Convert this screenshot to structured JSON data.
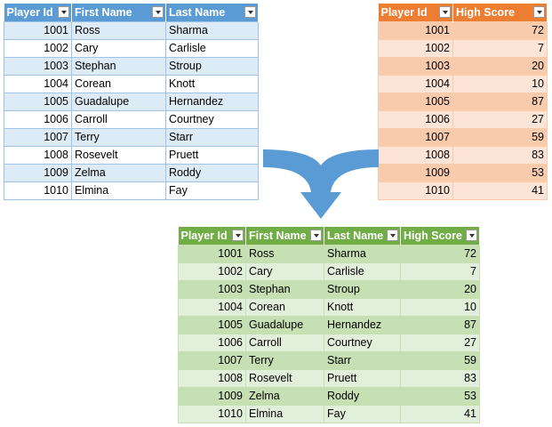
{
  "tables": {
    "players": {
      "headers": [
        "Player Id",
        "First Name",
        "Last Name"
      ],
      "rows": [
        [
          "1001",
          "Ross",
          "Sharma"
        ],
        [
          "1002",
          "Cary",
          "Carlisle"
        ],
        [
          "1003",
          "Stephan",
          "Stroup"
        ],
        [
          "1004",
          "Corean",
          "Knott"
        ],
        [
          "1005",
          "Guadalupe",
          "Hernandez"
        ],
        [
          "1006",
          "Carroll",
          "Courtney"
        ],
        [
          "1007",
          "Terry",
          "Starr"
        ],
        [
          "1008",
          "Rosevelt",
          "Pruett"
        ],
        [
          "1009",
          "Zelma",
          "Roddy"
        ],
        [
          "1010",
          "Elmina",
          "Fay"
        ]
      ]
    },
    "scores": {
      "headers": [
        "Player Id",
        "High Score"
      ],
      "rows": [
        [
          "1001",
          "72"
        ],
        [
          "1002",
          "7"
        ],
        [
          "1003",
          "20"
        ],
        [
          "1004",
          "10"
        ],
        [
          "1005",
          "87"
        ],
        [
          "1006",
          "27"
        ],
        [
          "1007",
          "59"
        ],
        [
          "1008",
          "83"
        ],
        [
          "1009",
          "53"
        ],
        [
          "1010",
          "41"
        ]
      ]
    },
    "merged": {
      "headers": [
        "Player Id",
        "First Name",
        "Last Name",
        "High Score"
      ],
      "rows": [
        [
          "1001",
          "Ross",
          "Sharma",
          "72"
        ],
        [
          "1002",
          "Cary",
          "Carlisle",
          "7"
        ],
        [
          "1003",
          "Stephan",
          "Stroup",
          "20"
        ],
        [
          "1004",
          "Corean",
          "Knott",
          "10"
        ],
        [
          "1005",
          "Guadalupe",
          "Hernandez",
          "87"
        ],
        [
          "1006",
          "Carroll",
          "Courtney",
          "27"
        ],
        [
          "1007",
          "Terry",
          "Starr",
          "59"
        ],
        [
          "1008",
          "Rosevelt",
          "Pruett",
          "83"
        ],
        [
          "1009",
          "Zelma",
          "Roddy",
          "53"
        ],
        [
          "1010",
          "Elmina",
          "Fay",
          "41"
        ]
      ]
    }
  },
  "colors": {
    "players_header": "#5b9bd5",
    "scores_header": "#ed7d31",
    "merged_header": "#70ad47",
    "arrow": "#5b9bd5"
  },
  "icons": {
    "header_filter": "filter-dropdown-icon",
    "merge": "merge-arrow"
  }
}
